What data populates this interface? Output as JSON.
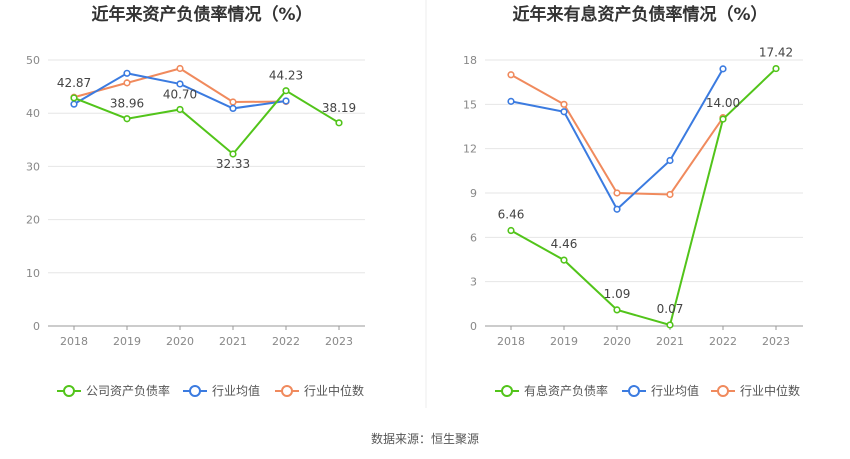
{
  "source_text": "数据来源：恒生聚源",
  "chart_data": [
    {
      "type": "line",
      "title": "近年来资产负债率情况（%）",
      "categories": [
        "2018",
        "2019",
        "2020",
        "2021",
        "2022",
        "2023"
      ],
      "ylim": [
        0,
        50
      ],
      "yticks": [
        0,
        10,
        20,
        30,
        40,
        50
      ],
      "grid": true,
      "legend_position": "bottom",
      "series": [
        {
          "name": "公司资产负债率",
          "color": "#52c41a",
          "values": [
            42.87,
            38.96,
            40.7,
            32.33,
            44.23,
            38.19
          ],
          "labels": true
        },
        {
          "name": "行业均值",
          "color": "#3b7be0",
          "values": [
            41.7,
            47.5,
            45.5,
            40.9,
            42.3,
            null
          ],
          "labels": false
        },
        {
          "name": "行业中位数",
          "color": "#f08a5d",
          "values": [
            43.0,
            45.7,
            48.4,
            42.1,
            42.2,
            null
          ],
          "labels": false
        }
      ]
    },
    {
      "type": "line",
      "title": "近年来有息资产负债率情况（%）",
      "categories": [
        "2018",
        "2019",
        "2020",
        "2021",
        "2022",
        "2023"
      ],
      "ylim": [
        0,
        18
      ],
      "yticks": [
        0,
        3,
        6,
        9,
        12,
        15,
        18
      ],
      "grid": true,
      "legend_position": "bottom",
      "series": [
        {
          "name": "有息资产负债率",
          "color": "#52c41a",
          "values": [
            6.46,
            4.46,
            1.09,
            0.07,
            14.0,
            17.42
          ],
          "labels": true
        },
        {
          "name": "行业均值",
          "color": "#3b7be0",
          "values": [
            15.2,
            14.5,
            7.9,
            11.2,
            17.4,
            null
          ],
          "labels": false
        },
        {
          "name": "行业中位数",
          "color": "#f08a5d",
          "values": [
            17.0,
            15.0,
            9.0,
            8.9,
            14.1,
            null
          ],
          "labels": false
        }
      ]
    }
  ]
}
